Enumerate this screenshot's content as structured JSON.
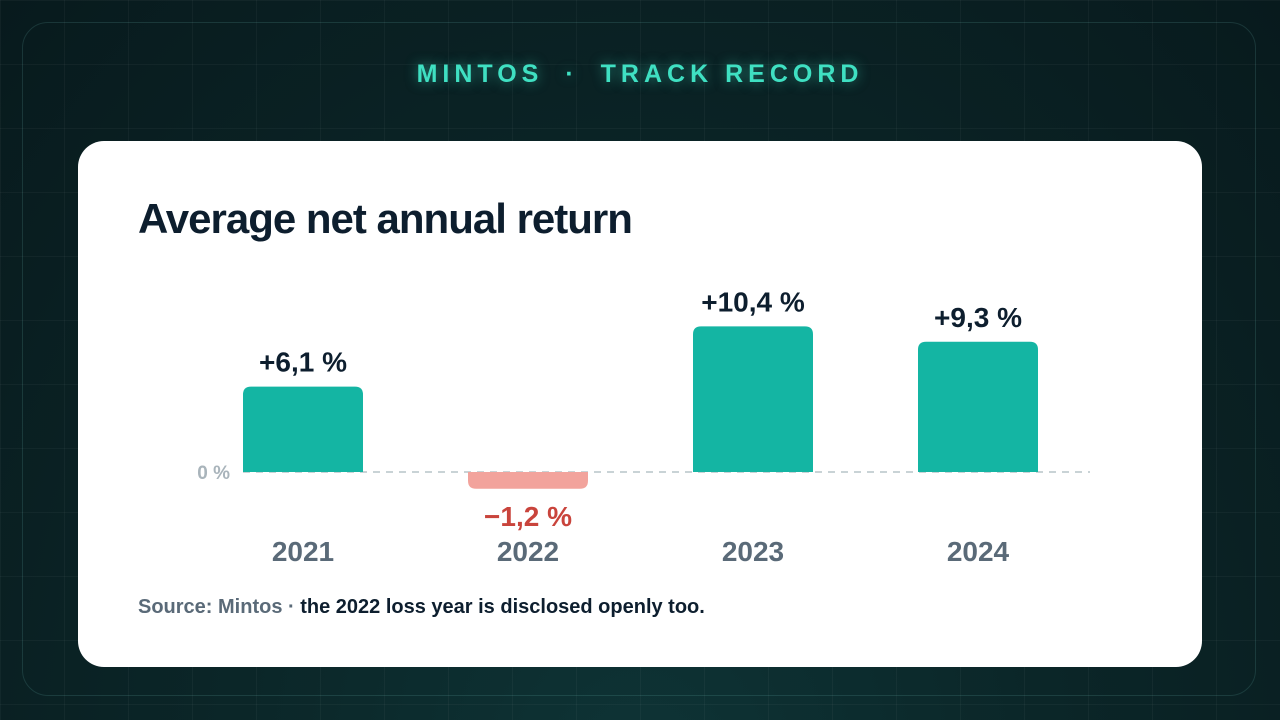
{
  "header": {
    "brand": "MINTOS",
    "separator": "·",
    "section": "TRACK RECORD"
  },
  "colors": {
    "accent": "#3fe0c2",
    "positive_bar": "#14b5a3",
    "negative_bar": "#f2a39c",
    "negative_label": "#c9443c",
    "text_dark": "#0d1e2e",
    "text_muted": "#5a6a78",
    "zero_line": "#c9d3d6"
  },
  "chart_data": {
    "type": "bar",
    "title": "Average net annual return",
    "categories": [
      "2021",
      "2022",
      "2023",
      "2024"
    ],
    "values": [
      6.1,
      -1.2,
      10.4,
      9.3
    ],
    "data_labels": [
      "+6,1 %",
      "−1,2 %",
      "+10,4 %",
      "+9,3 %"
    ],
    "baseline_label": "0 %",
    "grid": false,
    "legend": "none"
  },
  "footnote": {
    "source": "Source: Mintos · ",
    "note": "the 2022 loss year is disclosed openly too."
  }
}
